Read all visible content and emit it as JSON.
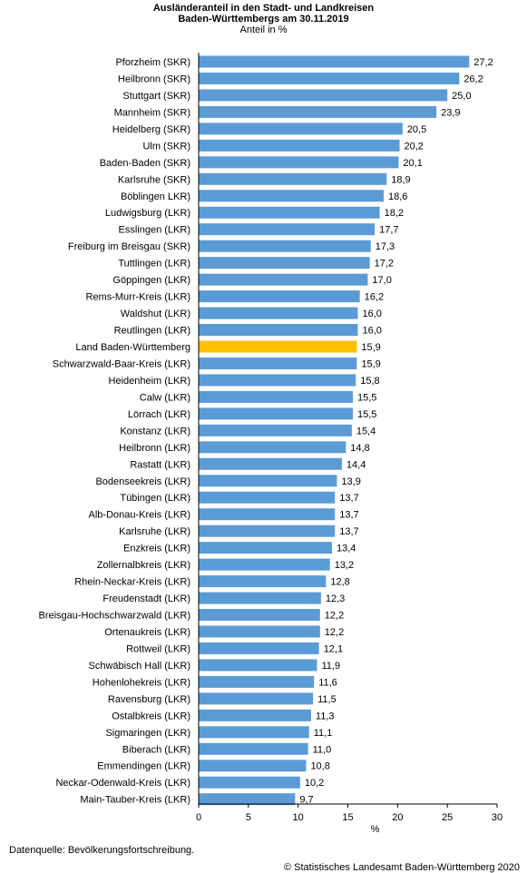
{
  "chart_data": {
    "type": "bar",
    "orientation": "horizontal",
    "title": [
      "Ausländeranteil in den Stadt- und Landkreisen",
      "Baden-Württembergs am 30.11.2019"
    ],
    "subtitle": "Anteil in %",
    "xlabel": "%",
    "xlim": [
      0,
      30
    ],
    "xticks": [
      0,
      5,
      10,
      15,
      20,
      25,
      30
    ],
    "grid": false,
    "legend": "none",
    "colors": {
      "bar": "#5b9bd5",
      "highlight": "#ffc000"
    },
    "highlight": "Land Baden-Württemberg",
    "categories": [
      "Pforzheim (SKR)",
      "Heilbronn (SKR)",
      "Stuttgart (SKR)",
      "Mannheim (SKR)",
      "Heidelberg (SKR)",
      "Ulm (SKR)",
      "Baden-Baden (SKR)",
      "Karlsruhe (SKR)",
      "Böblingen LKR)",
      "Ludwigsburg (LKR)",
      "Esslingen (LKR)",
      "Freiburg im Breisgau (SKR)",
      "Tuttlingen (LKR)",
      "Göppingen (LKR)",
      "Rems-Murr-Kreis  (LKR)",
      "Waldshut (LKR)",
      "Reutlingen (LKR)",
      "Land Baden-Württemberg",
      "Schwarzwald-Baar-Kreis (LKR)",
      "Heidenheim (LKR)",
      "Calw (LKR)",
      "Lörrach (LKR)",
      "Konstanz (LKR)",
      "Heilbronn (LKR)",
      "Rastatt (LKR)",
      "Bodenseekreis (LKR)",
      "Tübingen (LKR)",
      "Alb-Donau-Kreis (LKR)",
      "Karlsruhe (LKR)",
      "Enzkreis (LKR)",
      "Zollernalbkreis (LKR)",
      "Rhein-Neckar-Kreis (LKR)",
      "Freudenstadt (LKR)",
      "Breisgau-Hochschwarzwald (LKR)",
      "Ortenaukreis (LKR)",
      "Rottweil (LKR)",
      "Schwäbisch Hall (LKR)",
      "Hohenlohekreis (LKR)",
      "Ravensburg (LKR)",
      "Ostalbkreis (LKR)",
      "Sigmaringen (LKR)",
      "Biberach (LKR)",
      "Emmendingen (LKR)",
      "Neckar-Odenwald-Kreis (LKR)",
      "Main-Tauber-Kreis (LKR)"
    ],
    "values": [
      27.2,
      26.2,
      25.0,
      23.9,
      20.5,
      20.2,
      20.1,
      18.9,
      18.6,
      18.2,
      17.7,
      17.3,
      17.2,
      17.0,
      16.2,
      16.0,
      16.0,
      15.9,
      15.9,
      15.8,
      15.5,
      15.5,
      15.4,
      14.8,
      14.4,
      13.9,
      13.7,
      13.7,
      13.7,
      13.4,
      13.2,
      12.8,
      12.3,
      12.2,
      12.2,
      12.1,
      11.9,
      11.6,
      11.5,
      11.3,
      11.1,
      11.0,
      10.8,
      10.2,
      9.7
    ],
    "value_labels": [
      "27,2",
      "26,2",
      "25,0",
      "23,9",
      "20,5",
      "20,2",
      "20,1",
      "18,9",
      "18,6",
      "18,2",
      "17,7",
      "17,3",
      "17,2",
      "17,0",
      "16,2",
      "16,0",
      "16,0",
      "15,9",
      "15,9",
      "15,8",
      "15,5",
      "15,5",
      "15,4",
      "14,8",
      "14,4",
      "13,9",
      "13,7",
      "13,7",
      "13,7",
      "13,4",
      "13,2",
      "12,8",
      "12,3",
      "12,2",
      "12,2",
      "12,1",
      "11,9",
      "11,6",
      "11,5",
      "11,3",
      "11,1",
      "11,0",
      "10,8",
      "10,2",
      "9,7"
    ]
  },
  "footer": {
    "source": "Datenquelle: Bevölkerungsfortschreibung.",
    "copyright": "© Statistisches Landesamt Baden-Württemberg 2020"
  }
}
